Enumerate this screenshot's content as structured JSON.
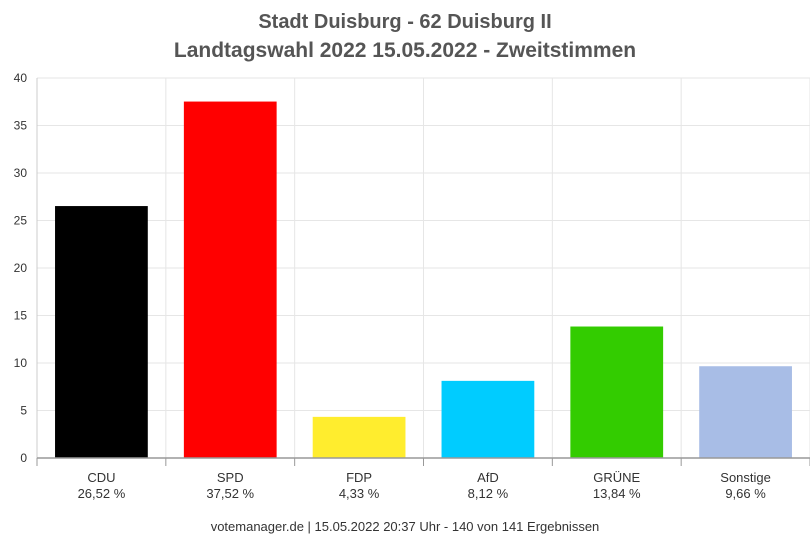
{
  "header": {
    "title_line1": "Stadt Duisburg - 62 Duisburg II",
    "title_line2": "Landtagswahl 2022 15.05.2022  - Zweitstimmen"
  },
  "footer": {
    "text": "votemanager.de | 15.05.2022 20:37 Uhr - 140 von 141 Ergebnissen"
  },
  "chart_data": {
    "type": "bar",
    "title": "Stadt Duisburg - 62 Duisburg II / Landtagswahl 2022 15.05.2022  - Zweitstimmen",
    "xlabel": "",
    "ylabel": "",
    "ylim": [
      0,
      40
    ],
    "yticks": [
      0,
      5,
      10,
      15,
      20,
      25,
      30,
      35,
      40
    ],
    "grid": true,
    "legend": "none",
    "categories": [
      "CDU",
      "SPD",
      "FDP",
      "AfD",
      "GRÜNE",
      "Sonstige"
    ],
    "values": [
      26.52,
      37.52,
      4.33,
      8.12,
      13.84,
      9.66
    ],
    "value_labels": [
      "26,52 %",
      "37,52 %",
      "4,33 %",
      "8,12 %",
      "13,84 %",
      "9,66 %"
    ],
    "colors": [
      "#000000",
      "#ff0000",
      "#ffed2e",
      "#00ccff",
      "#33cc00",
      "#a8bde6"
    ]
  }
}
